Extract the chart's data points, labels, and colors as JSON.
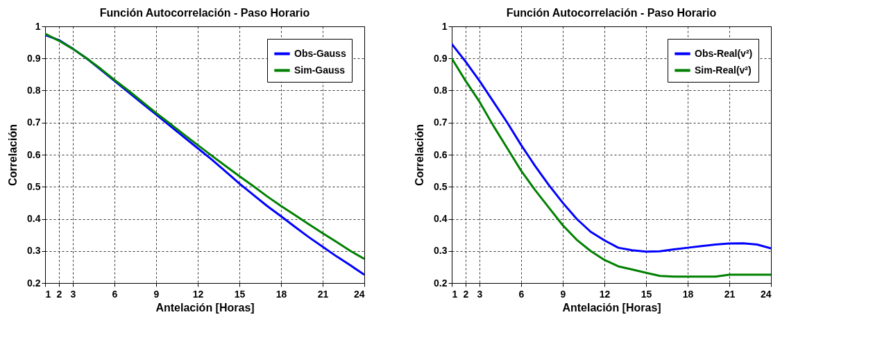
{
  "chart_data": [
    {
      "type": "line",
      "title": "Función Autocorrelación - Paso Horario",
      "xlabel": "Antelación [Horas]",
      "ylabel": "Correlación",
      "x": [
        1,
        2,
        3,
        4,
        5,
        6,
        7,
        8,
        9,
        10,
        11,
        12,
        13,
        14,
        15,
        16,
        17,
        18,
        19,
        20,
        21,
        22,
        23,
        24
      ],
      "series": [
        {
          "name": "Obs-Gauss",
          "color": "#0000ff",
          "values": [
            0.973,
            0.957,
            0.93,
            0.9,
            0.865,
            0.83,
            0.795,
            0.76,
            0.725,
            0.69,
            0.655,
            0.62,
            0.585,
            0.548,
            0.51,
            0.475,
            0.44,
            0.408,
            0.375,
            0.343,
            0.313,
            0.283,
            0.255,
            0.226
          ]
        },
        {
          "name": "Sim-Gauss",
          "color": "#008000",
          "values": [
            0.977,
            0.955,
            0.93,
            0.9,
            0.868,
            0.833,
            0.8,
            0.765,
            0.73,
            0.697,
            0.663,
            0.63,
            0.597,
            0.565,
            0.533,
            0.502,
            0.47,
            0.44,
            0.412,
            0.383,
            0.355,
            0.328,
            0.3,
            0.275
          ]
        }
      ],
      "xlim": [
        1,
        24
      ],
      "xticks": [
        1,
        2,
        3,
        6,
        9,
        12,
        15,
        18,
        21,
        24
      ],
      "ylim": [
        0.2,
        1
      ],
      "yticks": [
        0.2,
        0.3,
        0.4,
        0.5,
        0.6,
        0.7,
        0.8,
        0.9,
        1
      ],
      "grid": true,
      "legend": "top right",
      "line_style": "solid",
      "marker": "none"
    },
    {
      "type": "line",
      "title": "Función Autocorrelación - Paso Horario",
      "xlabel": "Antelación [Horas]",
      "ylabel": "Correlación",
      "x": [
        1,
        2,
        3,
        4,
        5,
        6,
        7,
        8,
        9,
        10,
        11,
        12,
        13,
        14,
        15,
        16,
        17,
        18,
        19,
        20,
        21,
        22,
        23,
        24
      ],
      "series": [
        {
          "name": "Obs-Real(v²)",
          "color": "#0000ff",
          "values": [
            0.945,
            0.89,
            0.83,
            0.765,
            0.7,
            0.63,
            0.565,
            0.505,
            0.45,
            0.4,
            0.36,
            0.333,
            0.31,
            0.302,
            0.298,
            0.299,
            0.305,
            0.31,
            0.315,
            0.32,
            0.323,
            0.324,
            0.32,
            0.308
          ]
        },
        {
          "name": "Sim-Real(v²)",
          "color": "#008000",
          "values": [
            0.9,
            0.83,
            0.765,
            0.69,
            0.62,
            0.55,
            0.49,
            0.435,
            0.38,
            0.335,
            0.3,
            0.272,
            0.252,
            0.242,
            0.232,
            0.222,
            0.22,
            0.22,
            0.22,
            0.22,
            0.226,
            0.226,
            0.226,
            0.226
          ]
        }
      ],
      "xlim": [
        1,
        24
      ],
      "xticks": [
        1,
        2,
        3,
        6,
        9,
        12,
        15,
        18,
        21,
        24
      ],
      "ylim": [
        0.2,
        1
      ],
      "yticks": [
        0.2,
        0.3,
        0.4,
        0.5,
        0.6,
        0.7,
        0.8,
        0.9,
        1
      ],
      "grid": true,
      "legend": "top right",
      "line_style": "solid",
      "marker": "none"
    }
  ]
}
